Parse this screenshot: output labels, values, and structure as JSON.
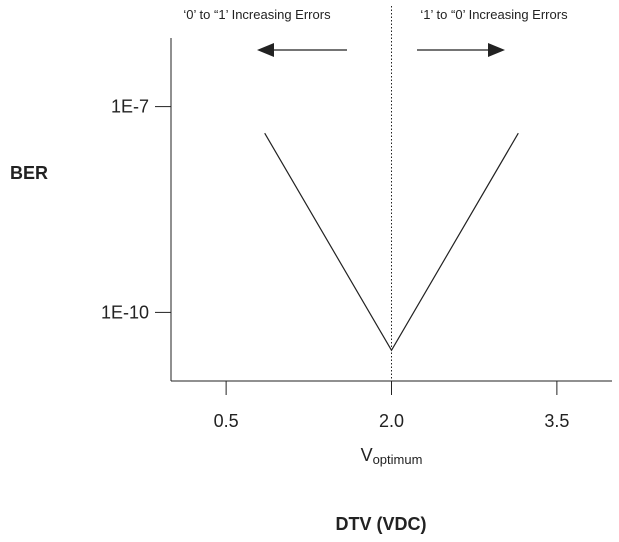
{
  "chart_data": {
    "type": "line",
    "xlabel": "DTV (VDC)",
    "ylabel": "BER",
    "x_ticks": [
      0.5,
      2.0,
      3.5
    ],
    "x_tick_labels": [
      "0.5",
      "2.0",
      "3.5"
    ],
    "y_scale": "log",
    "y_ticks": [
      1e-07,
      1e-10
    ],
    "y_tick_labels": [
      "1E-7",
      "1E-10"
    ],
    "xlim": [
      0.0,
      4.0
    ],
    "ylim": [
      1e-11,
      1e-06
    ],
    "optimum": {
      "x": 2.0,
      "label_main": "V",
      "label_sub": "optimum"
    },
    "series": [
      {
        "x": [
          0.85,
          2.0,
          3.15
        ],
        "y": [
          4.1e-08,
          2.8e-11,
          4.1e-08
        ]
      }
    ],
    "annotations": {
      "left": {
        "text": "‘0’ to “1’ Increasing Errors",
        "direction": "left"
      },
      "right": {
        "text": "‘1’ to “0’ Increasing Errors",
        "direction": "right"
      }
    },
    "grid": false,
    "legend": "none"
  }
}
